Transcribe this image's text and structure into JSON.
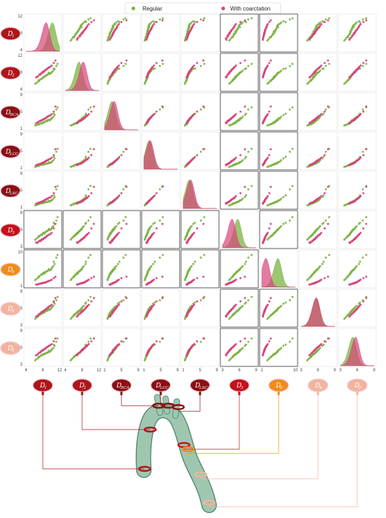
{
  "legend": {
    "items": [
      {
        "label": "Regular",
        "color": "#7cb342"
      },
      {
        "label": "With coarctation",
        "color": "#d6457a"
      }
    ]
  },
  "variables": [
    {
      "main": "D",
      "sub": "1",
      "color": "#b0151b",
      "ticks": [
        "4",
        "8",
        "12"
      ]
    },
    {
      "main": "D",
      "sub": "2",
      "color": "#b0151b",
      "ticks": [
        "4",
        "8",
        "12"
      ]
    },
    {
      "main": "D",
      "sub": "BCA",
      "color": "#8a1014",
      "ticks": [
        "1",
        "5",
        "9"
      ]
    },
    {
      "main": "D",
      "sub": "LCCA",
      "color": "#8a1014",
      "ticks": [
        "1",
        "5",
        "9"
      ]
    },
    {
      "main": "D",
      "sub": "LSCA",
      "color": "#8a1014",
      "ticks": [
        "1",
        "5",
        "9"
      ]
    },
    {
      "main": "D",
      "sub": "3",
      "color": "#c4121b",
      "ticks": [
        "3",
        "6",
        "9"
      ]
    },
    {
      "main": "D",
      "sub": "0",
      "color": "#ef8c1a",
      "ticks": [
        "1",
        "10"
      ]
    },
    {
      "main": "D",
      "sub": "4",
      "color": "#f2b49e",
      "ticks": [
        "3",
        "6",
        "9"
      ]
    },
    {
      "main": "D",
      "sub": "5",
      "color": "#f2b49e",
      "ticks": [
        "3",
        "6",
        "9"
      ]
    }
  ],
  "chart_data": {
    "type": "scatter",
    "subtype": "pair-plot matrix (scatter off-diagonal, KDE on diagonal)",
    "title": "",
    "variables": [
      "D1",
      "D2",
      "DBCA",
      "DLCCA",
      "DLSCA",
      "D3",
      "D0",
      "D4",
      "D5"
    ],
    "ranges": {
      "D1": [
        4,
        12
      ],
      "D2": [
        4,
        12
      ],
      "DBCA": [
        1,
        9
      ],
      "DLCCA": [
        1,
        9
      ],
      "DLSCA": [
        1,
        9
      ],
      "D3": [
        3,
        9
      ],
      "D0": [
        1,
        10
      ],
      "D4": [
        3,
        9
      ],
      "D5": [
        3,
        9
      ]
    },
    "series": [
      {
        "name": "Regular",
        "color": "#7cb342",
        "kde_peaks": {
          "D1": 10.0,
          "D2": 7.0,
          "DBCA": 2.5,
          "DLCCA": 2.0,
          "DLSCA": 2.2,
          "D3": 5.5,
          "D0": 5.0,
          "D4": 5.5,
          "D5": 5.0
        },
        "samples": {
          "D1": [
            7.1,
            8.4,
            9.2,
            10.1,
            6.5,
            7.8,
            9.9,
            11.2,
            8.8,
            7.3,
            10.5,
            9.6,
            8.1,
            6.9,
            10.8,
            9.0,
            7.6,
            11.5,
            8.5,
            9.4,
            6.2,
            10.2,
            8.9,
            7.9,
            9.7,
            10.6,
            8.3,
            7.0
          ],
          "D2": [
            6.0,
            7.0,
            7.5,
            8.0,
            5.5,
            6.5,
            7.8,
            9.5,
            7.2,
            6.2,
            8.4,
            7.6,
            6.8,
            5.8,
            8.8,
            7.4,
            6.4,
            10.0,
            7.1,
            7.9,
            5.3,
            8.1,
            7.3,
            6.6,
            7.7,
            8.9,
            6.9,
            6.1
          ],
          "DBCA": [
            2.0,
            2.5,
            3.0,
            3.5,
            1.8,
            2.2,
            3.2,
            5.5,
            2.8,
            2.1,
            3.8,
            2.9,
            2.4,
            1.9,
            4.2,
            2.7,
            2.3,
            6.0,
            2.6,
            3.1,
            1.7,
            3.4,
            2.8,
            2.2,
            3.0,
            4.5,
            2.5,
            2.0
          ],
          "DLCCA": [
            1.5,
            1.8,
            2.0,
            2.4,
            1.3,
            1.7,
            2.2,
            4.8,
            2.0,
            1.6,
            2.8,
            2.1,
            1.9,
            1.4,
            3.2,
            2.0,
            1.7,
            5.5,
            1.9,
            2.3,
            1.2,
            2.5,
            2.0,
            1.7,
            2.2,
            3.6,
            1.9,
            1.5
          ],
          "DLSCA": [
            1.8,
            2.0,
            2.3,
            2.6,
            1.5,
            1.9,
            2.5,
            5.2,
            2.2,
            1.8,
            3.0,
            2.3,
            2.1,
            1.6,
            3.4,
            2.2,
            1.9,
            6.0,
            2.1,
            2.5,
            1.4,
            2.7,
            2.2,
            1.9,
            2.4,
            3.8,
            2.1,
            1.7
          ],
          "D3": [
            4.8,
            5.3,
            5.8,
            6.2,
            4.4,
            5.0,
            6.0,
            7.6,
            5.6,
            4.9,
            6.6,
            5.9,
            5.4,
            4.6,
            7.0,
            5.7,
            5.1,
            8.2,
            5.5,
            6.1,
            4.2,
            6.4,
            5.7,
            5.2,
            6.0,
            7.2,
            5.4,
            4.8
          ],
          "D0": [
            3.5,
            4.2,
            5.0,
            5.6,
            2.8,
            3.9,
            5.3,
            8.5,
            4.7,
            3.6,
            6.2,
            5.1,
            4.4,
            3.1,
            6.8,
            4.9,
            4.0,
            9.2,
            4.6,
            5.4,
            2.5,
            5.9,
            4.8,
            4.1,
            5.2,
            7.4,
            4.5,
            3.4
          ],
          "D4": [
            4.8,
            5.2,
            5.6,
            6.1,
            4.3,
            5.0,
            5.9,
            7.4,
            5.5,
            4.8,
            6.4,
            5.7,
            5.3,
            4.5,
            6.8,
            5.6,
            5.0,
            8.0,
            5.4,
            5.9,
            4.1,
            6.2,
            5.5,
            5.1,
            5.8,
            7.0,
            5.3,
            4.7
          ],
          "D5": [
            4.3,
            4.8,
            5.1,
            5.6,
            3.9,
            4.6,
            5.4,
            7.0,
            5.0,
            4.4,
            5.9,
            5.2,
            4.8,
            4.1,
            6.3,
            5.1,
            4.6,
            7.6,
            4.9,
            5.4,
            3.7,
            5.7,
            5.0,
            4.7,
            5.3,
            6.5,
            4.8,
            4.3
          ]
        }
      },
      {
        "name": "With coarctation",
        "color": "#d6457a",
        "kde_peaks": {
          "D1": 8.5,
          "D2": 8.0,
          "DBCA": 3.0,
          "DLCCA": 2.2,
          "DLSCA": 2.5,
          "D3": 4.5,
          "D0": 1.8,
          "D4": 5.5,
          "D5": 5.5
        },
        "samples": {
          "D1": [
            6.4,
            7.2,
            8.0,
            8.7,
            9.3,
            7.6,
            10.1,
            8.4,
            6.9,
            9.8,
            7.9,
            8.9,
            10.6,
            7.4,
            8.2,
            9.1,
            6.7,
            11.0,
            8.6,
            7.7,
            9.5,
            8.1
          ],
          "D2": [
            6.8,
            7.5,
            8.1,
            8.6,
            9.0,
            7.7,
            9.6,
            8.3,
            7.1,
            9.3,
            7.9,
            8.7,
            10.2,
            7.4,
            8.2,
            8.9,
            6.9,
            10.8,
            8.5,
            7.8,
            9.2,
            8.0
          ],
          "DBCA": [
            2.2,
            2.7,
            3.1,
            3.5,
            3.9,
            2.9,
            4.4,
            3.3,
            2.5,
            4.1,
            3.0,
            3.6,
            5.0,
            2.8,
            3.2,
            3.8,
            2.4,
            6.2,
            3.4,
            2.9,
            4.0,
            3.1
          ],
          "DLCCA": [
            1.6,
            1.9,
            2.2,
            2.6,
            2.9,
            2.0,
            3.4,
            2.4,
            1.8,
            3.1,
            2.1,
            2.7,
            4.0,
            1.9,
            2.3,
            2.8,
            1.7,
            5.4,
            2.5,
            2.1,
            3.0,
            2.2
          ],
          "DLSCA": [
            1.8,
            2.1,
            2.4,
            2.8,
            3.1,
            2.2,
            3.6,
            2.6,
            2.0,
            3.3,
            2.3,
            2.9,
            4.3,
            2.1,
            2.5,
            3.0,
            1.9,
            5.8,
            2.7,
            2.3,
            3.2,
            2.4
          ],
          "D3": [
            3.7,
            4.0,
            4.3,
            4.6,
            5.0,
            4.1,
            5.4,
            4.5,
            3.8,
            5.2,
            4.2,
            4.8,
            6.2,
            3.9,
            4.4,
            4.9,
            3.6,
            7.0,
            4.6,
            4.2,
            5.1,
            4.3
          ],
          "D0": [
            1.3,
            1.5,
            1.7,
            1.9,
            2.2,
            1.6,
            2.6,
            1.8,
            1.4,
            2.4,
            1.7,
            2.0,
            3.0,
            1.5,
            1.8,
            2.1,
            1.3,
            3.4,
            1.9,
            1.6,
            2.3,
            1.7
          ],
          "D4": [
            4.5,
            5.0,
            5.4,
            5.8,
            6.2,
            5.2,
            6.6,
            5.6,
            4.8,
            6.4,
            5.3,
            5.9,
            7.2,
            5.0,
            5.5,
            6.0,
            4.6,
            7.8,
            5.7,
            5.3,
            6.3,
            5.5
          ],
          "D5": [
            4.6,
            5.1,
            5.5,
            5.9,
            6.2,
            5.3,
            6.6,
            5.7,
            4.9,
            6.4,
            5.4,
            6.0,
            7.1,
            5.1,
            5.6,
            6.1,
            4.7,
            7.6,
            5.8,
            5.4,
            6.3,
            5.6
          ]
        }
      }
    ],
    "legend_position": "top-center",
    "grid": false
  }
}
